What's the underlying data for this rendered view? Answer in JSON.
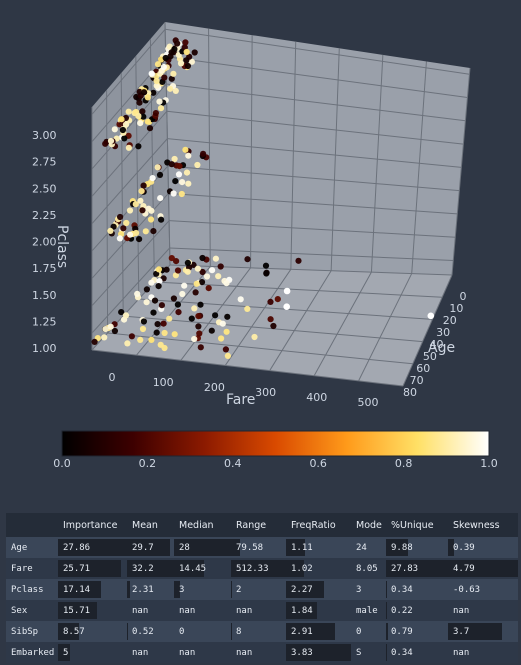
{
  "chart_data": {
    "type": "scatter",
    "scatter3d": {
      "xlabel": "Fare",
      "ylabel": "Age",
      "zlabel": "Pclass",
      "x_ticks": [
        "0",
        "100",
        "200",
        "300",
        "400",
        "500"
      ],
      "y_ticks": [
        "0",
        "10",
        "20",
        "30",
        "40",
        "50",
        "60",
        "70",
        "80"
      ],
      "z_ticks": [
        "1.00",
        "1.25",
        "1.50",
        "1.75",
        "2.00",
        "2.25",
        "2.50",
        "2.75",
        "3.00"
      ],
      "xlim": [
        0,
        512
      ],
      "ylim": [
        0,
        80
      ],
      "zlim": [
        1,
        3
      ],
      "colorscale": [
        "#000000",
        "#3d0000",
        "#8c1a00",
        "#d94a00",
        "#ff9a1a",
        "#ffe066",
        "#ffffff"
      ],
      "grid": true,
      "points_note": "Passenger points clustered along Pclass levels 1, 2 and 3; colour encodes normalised value 0-1"
    },
    "colorbar": {
      "ticks": [
        "0.0",
        "0.2",
        "0.4",
        "0.6",
        "0.8",
        "1.0"
      ],
      "range": [
        0,
        1
      ]
    }
  },
  "table": {
    "columns": [
      "",
      "Importance",
      "Mean",
      "Median",
      "Range",
      "FreqRatio",
      "Mode",
      "%Unique",
      "Skewness"
    ],
    "rows": [
      {
        "name": "Age",
        "cells": [
          "27.86",
          "29.7",
          "28",
          "79.58",
          "1.11",
          "24",
          "9.88",
          "0.39"
        ]
      },
      {
        "name": "Fare",
        "cells": [
          "25.71",
          "32.2",
          "14.45",
          "512.33",
          "1.02",
          "8.05",
          "27.83",
          "4.79"
        ]
      },
      {
        "name": "Pclass",
        "cells": [
          "17.14",
          "2.31",
          "3",
          "2",
          "2.27",
          "3",
          "0.34",
          "-0.63"
        ]
      },
      {
        "name": "Sex",
        "cells": [
          "15.71",
          "nan",
          "nan",
          "nan",
          "1.84",
          "male",
          "0.22",
          "nan"
        ]
      },
      {
        "name": "SibSp",
        "cells": [
          "8.57",
          "0.52",
          "0",
          "8",
          "2.91",
          "0",
          "0.79",
          "3.7"
        ]
      },
      {
        "name": "Embarked",
        "cells": [
          "5",
          "nan",
          "nan",
          "nan",
          "3.83",
          "S",
          "0.34",
          "nan"
        ]
      }
    ],
    "bar_fractions": [
      [
        1.0,
        0.92,
        1.0,
        0.155,
        0.29,
        null,
        0.355,
        0.08
      ],
      [
        0.92,
        1.0,
        0.52,
        1.0,
        0.27,
        null,
        1.0,
        1.0
      ],
      [
        0.62,
        0.07,
        0.11,
        0.004,
        0.59,
        null,
        0.012,
        0.0
      ],
      [
        0.56,
        0.0,
        0.0,
        0.0,
        0.48,
        null,
        0.008,
        0.0
      ],
      [
        0.31,
        0.016,
        0.0,
        0.016,
        0.76,
        null,
        0.028,
        0.77
      ],
      [
        0.18,
        0.0,
        0.0,
        0.0,
        1.0,
        null,
        0.012,
        0.0
      ]
    ]
  }
}
